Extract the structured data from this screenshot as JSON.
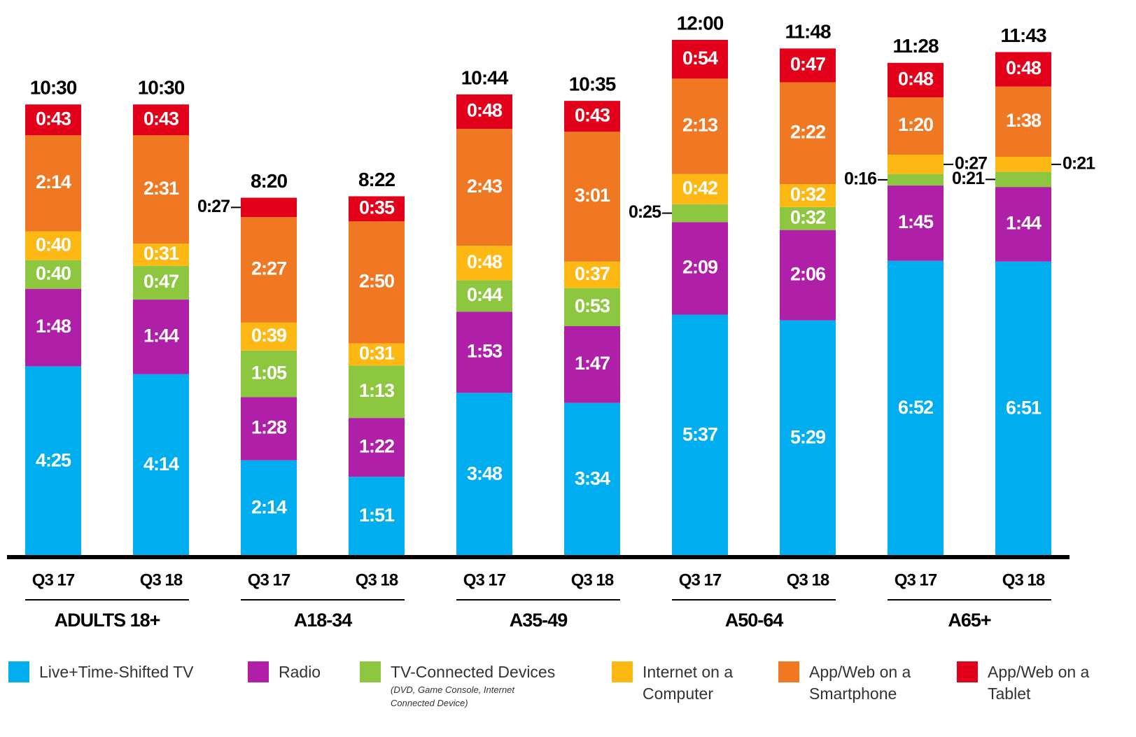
{
  "chart_data": {
    "type": "stacked_bar",
    "categories": [
      "Q3 17",
      "Q3 18",
      "Q3 17",
      "Q3 18",
      "Q3 17",
      "Q3 18",
      "Q3 17",
      "Q3 18",
      "Q3 17",
      "Q3 18"
    ],
    "groups": [
      "ADULTS 18+",
      "A18-34",
      "A35-49",
      "A50-64",
      "A65+"
    ],
    "series": [
      {
        "name": "Live+Time-Shifted TV",
        "color": "#00aeef",
        "values": [
          265,
          254,
          134,
          111,
          228,
          214,
          337,
          329,
          412,
          411
        ],
        "value_labels": [
          "4:25",
          "4:14",
          "2:14",
          "1:51",
          "3:48",
          "3:34",
          "5:37",
          "5:29",
          "6:52",
          "6:51"
        ]
      },
      {
        "name": "Radio",
        "color": "#b01fa8",
        "values": [
          108,
          104,
          88,
          82,
          113,
          107,
          129,
          126,
          105,
          104
        ],
        "value_labels": [
          "1:48",
          "1:44",
          "1:28",
          "1:22",
          "1:53",
          "1:47",
          "2:09",
          "2:06",
          "1:45",
          "1:44"
        ]
      },
      {
        "name": "TV-Connected Devices",
        "color": "#8dc63f",
        "values": [
          40,
          47,
          65,
          73,
          44,
          53,
          25,
          32,
          16,
          21
        ],
        "value_labels": [
          "0:40",
          "0:47",
          "1:05",
          "1:13",
          "0:44",
          "0:53",
          "0:25",
          "0:32",
          "0:16",
          "0:21"
        ]
      },
      {
        "name": "Internet on a Computer",
        "color": "#fdb813",
        "values": [
          40,
          31,
          39,
          31,
          48,
          37,
          42,
          32,
          27,
          21
        ],
        "value_labels": [
          "0:40",
          "0:31",
          "0:39",
          "0:31",
          "0:48",
          "0:37",
          "0:42",
          "0:32",
          "0:27",
          "0:21"
        ]
      },
      {
        "name": "App/Web on a Smartphone",
        "color": "#f07822",
        "values": [
          134,
          151,
          147,
          170,
          163,
          181,
          133,
          142,
          80,
          98
        ],
        "value_labels": [
          "2:14",
          "2:31",
          "2:27",
          "2:50",
          "2:43",
          "3:01",
          "2:13",
          "2:22",
          "1:20",
          "1:38"
        ]
      },
      {
        "name": "App/Web on a Tablet",
        "color": "#e2001a",
        "values": [
          43,
          43,
          27,
          35,
          48,
          43,
          54,
          47,
          48,
          48
        ],
        "value_labels": [
          "0:43",
          "0:43",
          "0:27",
          "0:35",
          "0:48",
          "0:43",
          "0:54",
          "0:47",
          "0:48",
          "0:48"
        ]
      }
    ],
    "totals": [
      630,
      630,
      500,
      502,
      644,
      635,
      720,
      708,
      688,
      703
    ],
    "total_labels": [
      "10:30",
      "10:30",
      "8:20",
      "8:22",
      "10:44",
      "10:35",
      "12:00",
      "11:48",
      "11:28",
      "11:43"
    ],
    "legend_note": "(DVD, Game Console, Internet Connected Device)"
  }
}
